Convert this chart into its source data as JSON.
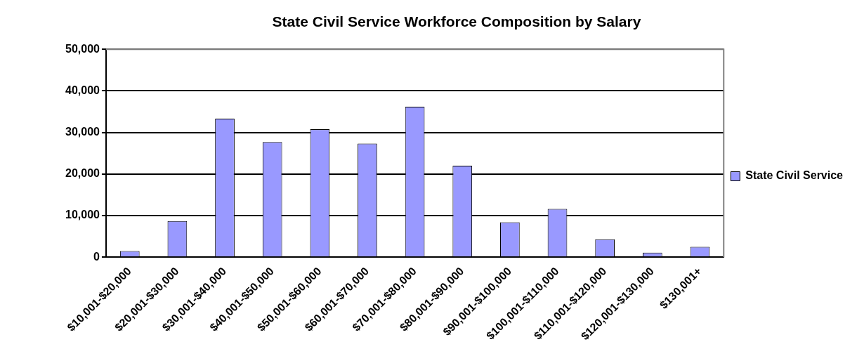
{
  "chart_data": {
    "type": "bar",
    "title": "State Civil Service Workforce Composition by Salary",
    "categories": [
      "$10,001-$20,000",
      "$20,001-$30,000",
      "$30,001-$40,000",
      "$40,001-$50,000",
      "$50,001-$60,000",
      "$60,001-$70,000",
      "$70,001-$80,000",
      "$80,001-$90,000",
      "$90,001-$100,000",
      "$100,001-$110,000",
      "$110,001-$120,000",
      "$120,001-$130,000",
      "$130,001+"
    ],
    "series": [
      {
        "name": "State Civil Service",
        "color": "#9999ff",
        "values": [
          1500,
          8700,
          33300,
          27700,
          30800,
          27300,
          36200,
          22000,
          8400,
          11600,
          4300,
          1100,
          2500
        ]
      }
    ],
    "ylim": [
      0,
      50000
    ],
    "yticks": [
      0,
      {
        "value": 10000,
        "label": "10,000"
      },
      {
        "value": 20000,
        "label": "20,000"
      },
      {
        "value": 30000,
        "label": "30,000"
      },
      {
        "value": 40000,
        "label": "40,000"
      },
      {
        "value": 50000,
        "label": "50,000"
      }
    ],
    "grid": "y",
    "legend": "right"
  }
}
